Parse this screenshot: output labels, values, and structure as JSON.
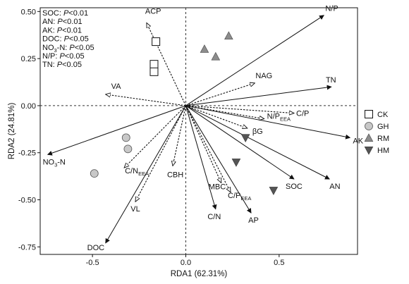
{
  "chart_data": {
    "type": "scatter",
    "title": "",
    "xlabel": "RDA1 (62.31%)",
    "ylabel": "RDA2 (24.81%)",
    "xlim": [
      -0.78,
      0.92
    ],
    "ylim": [
      -0.79,
      0.52
    ],
    "xticks": [
      -0.5,
      0.0,
      0.5
    ],
    "xtick_labels": [
      "-0.5",
      "0.0",
      "0.5"
    ],
    "yticks": [
      0.5,
      0.25,
      0.0,
      -0.25,
      -0.5,
      -0.75
    ],
    "ytick_labels": [
      "0.50",
      "0.25",
      "0.00",
      "-0.25",
      "-0.50",
      "-0.75"
    ],
    "reference_lines": {
      "x": 0,
      "y": 0,
      "style": "dotted"
    },
    "stats": [
      {
        "name": "SOC",
        "p": "P<0.01"
      },
      {
        "name": "AN",
        "p": "P<0.01"
      },
      {
        "name": "AK",
        "p": "P<0.01"
      },
      {
        "name": "DOC",
        "p": "P<0.05"
      },
      {
        "name": "NO3-N",
        "p": "P<0.05"
      },
      {
        "name": "N/P",
        "p": "P<0.05"
      },
      {
        "name": "TN",
        "p": "P<0.05"
      }
    ],
    "env_vectors": [
      {
        "label": "N/P",
        "x": 0.74,
        "y": 0.48
      },
      {
        "label": "TN",
        "x": 0.78,
        "y": 0.1
      },
      {
        "label": "AK",
        "x": 0.88,
        "y": -0.17
      },
      {
        "label": "AN",
        "x": 0.77,
        "y": -0.39
      },
      {
        "label": "SOC",
        "x": 0.58,
        "y": -0.39
      },
      {
        "label": "AP",
        "x": 0.35,
        "y": -0.57
      },
      {
        "label": "C/N",
        "x": 0.16,
        "y": -0.55
      },
      {
        "label": "NO3-N",
        "x": -0.74,
        "y": -0.26
      },
      {
        "label": "DOC",
        "x": -0.43,
        "y": -0.73
      }
    ],
    "enzyme_vectors": [
      {
        "label": "ACP",
        "x": -0.21,
        "y": 0.44
      },
      {
        "label": "NAG",
        "x": 0.37,
        "y": 0.12
      },
      {
        "label": "VA",
        "x": -0.43,
        "y": 0.06
      },
      {
        "label": "C/P",
        "x": 0.58,
        "y": -0.04
      },
      {
        "label": "N/P_EEA",
        "x": 0.42,
        "y": -0.07
      },
      {
        "label": "βG",
        "x": 0.33,
        "y": -0.12
      },
      {
        "label": "C/N_EEA",
        "x": -0.33,
        "y": -0.33
      },
      {
        "label": "CBH",
        "x": -0.07,
        "y": -0.32
      },
      {
        "label": "VL",
        "x": -0.27,
        "y": -0.51
      },
      {
        "label": "MBC",
        "x": 0.19,
        "y": -0.41
      },
      {
        "label": "C/P_EEA",
        "x": 0.24,
        "y": -0.46
      }
    ],
    "series": [
      {
        "name": "CK",
        "marker": "open-square",
        "points": [
          [
            -0.16,
            0.34
          ],
          [
            -0.17,
            0.22
          ],
          [
            -0.17,
            0.18
          ]
        ]
      },
      {
        "name": "GH",
        "marker": "circle",
        "color": "#c8c8c8",
        "points": [
          [
            -0.32,
            -0.17
          ],
          [
            -0.31,
            -0.23
          ],
          [
            -0.49,
            -0.36
          ]
        ]
      },
      {
        "name": "RM",
        "marker": "triangle-up",
        "color": "#8c8c8c",
        "points": [
          [
            0.1,
            0.3
          ],
          [
            0.16,
            0.26
          ],
          [
            0.23,
            0.37
          ]
        ]
      },
      {
        "name": "HM",
        "marker": "triangle-down",
        "color": "#555555",
        "points": [
          [
            0.32,
            -0.17
          ],
          [
            0.27,
            -0.3
          ],
          [
            0.47,
            -0.45
          ]
        ]
      }
    ]
  }
}
